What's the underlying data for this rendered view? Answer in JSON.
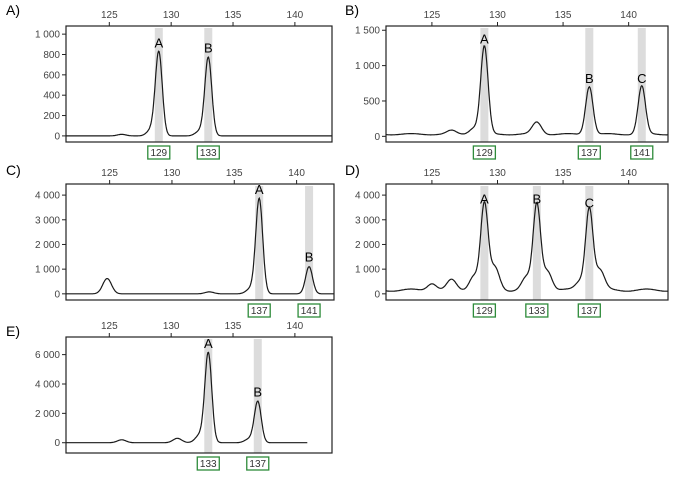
{
  "chart_data": [
    {
      "panel": "A)",
      "type": "line",
      "xlim": [
        121.5,
        143
      ],
      "ylim": [
        -60,
        1080
      ],
      "x_ticks": [
        125,
        130,
        135,
        140
      ],
      "y_ticks": [
        0,
        200,
        400,
        600,
        800,
        1000
      ],
      "y_tick_labels": [
        "0",
        "200",
        "400",
        "600",
        "800",
        "1 000"
      ],
      "baseline": 0,
      "peaks": [
        {
          "label": "A",
          "allele": "129",
          "x": 129.0,
          "height": 820
        },
        {
          "label": "B",
          "allele": "133",
          "x": 133.0,
          "height": 770
        }
      ],
      "minor_peaks": [
        {
          "x": 128.4,
          "height": 60
        },
        {
          "x": 132.3,
          "height": 45
        },
        {
          "x": 126.0,
          "height": 15
        }
      ],
      "drawn_to_x": 143
    },
    {
      "panel": "B)",
      "type": "line",
      "xlim": [
        121.5,
        143
      ],
      "ylim": [
        -80,
        1560
      ],
      "x_ticks": [
        125,
        130,
        135,
        140
      ],
      "y_ticks": [
        0,
        500,
        1000,
        1500
      ],
      "y_tick_labels": [
        "0",
        "500",
        "1 000",
        "1 500"
      ],
      "baseline": 30,
      "peaks": [
        {
          "label": "A",
          "allele": "129",
          "x": 129.0,
          "height": 1240
        },
        {
          "label": "B",
          "allele": "137",
          "x": 137.0,
          "height": 680
        },
        {
          "label": "C",
          "allele": "141",
          "x": 141.0,
          "height": 680
        }
      ],
      "minor_peaks": [
        {
          "x": 133.0,
          "height": 170
        },
        {
          "x": 128.2,
          "height": 90
        },
        {
          "x": 126.5,
          "height": 50
        }
      ],
      "drawn_to_x": 143
    },
    {
      "panel": "C)",
      "type": "line",
      "xlim": [
        121.5,
        143
      ],
      "ylim": [
        -250,
        4450
      ],
      "x_ticks": [
        125,
        130,
        135,
        140
      ],
      "y_ticks": [
        0,
        1000,
        2000,
        3000,
        4000
      ],
      "y_tick_labels": [
        "0",
        "1 000",
        "2 000",
        "3 000",
        "4 000"
      ],
      "baseline": 0,
      "peaks": [
        {
          "label": "A",
          "allele": "137",
          "x": 137.0,
          "height": 3850
        },
        {
          "label": "B",
          "allele": "141",
          "x": 141.0,
          "height": 1100
        }
      ],
      "minor_peaks": [
        {
          "x": 124.8,
          "height": 620
        },
        {
          "x": 136.3,
          "height": 200
        },
        {
          "x": 133.0,
          "height": 80
        }
      ],
      "drawn_to_x": 143
    },
    {
      "panel": "D)",
      "type": "line",
      "xlim": [
        121.5,
        143
      ],
      "ylim": [
        -250,
        4450
      ],
      "x_ticks": [
        125,
        130,
        135,
        140
      ],
      "y_ticks": [
        0,
        1000,
        2000,
        3000,
        4000
      ],
      "y_tick_labels": [
        "0",
        "1 000",
        "2 000",
        "3 000",
        "4 000"
      ],
      "baseline": 150,
      "peaks": [
        {
          "label": "A",
          "allele": "129",
          "x": 129.0,
          "height": 3450
        },
        {
          "label": "B",
          "allele": "133",
          "x": 133.0,
          "height": 3450
        },
        {
          "label": "C",
          "allele": "137",
          "x": 137.0,
          "height": 3300
        }
      ],
      "minor_peaks": [
        {
          "x": 129.8,
          "height": 900
        },
        {
          "x": 133.8,
          "height": 800
        },
        {
          "x": 137.8,
          "height": 800
        },
        {
          "x": 128.2,
          "height": 600
        },
        {
          "x": 132.2,
          "height": 500
        },
        {
          "x": 136.3,
          "height": 350
        },
        {
          "x": 126.5,
          "height": 400
        },
        {
          "x": 125.0,
          "height": 300
        }
      ],
      "drawn_to_x": 143
    },
    {
      "panel": "E)",
      "type": "line",
      "xlim": [
        121.5,
        143
      ],
      "ylim": [
        -700,
        7200
      ],
      "x_ticks": [
        125,
        130,
        135,
        140
      ],
      "y_ticks": [
        0,
        2000,
        4000,
        6000
      ],
      "y_tick_labels": [
        "0",
        "2 000",
        "4 000",
        "6 000"
      ],
      "baseline": 0,
      "peaks": [
        {
          "label": "A",
          "allele": "133",
          "x": 133.0,
          "height": 6100
        },
        {
          "label": "B",
          "allele": "137",
          "x": 137.0,
          "height": 2800
        }
      ],
      "minor_peaks": [
        {
          "x": 132.3,
          "height": 500
        },
        {
          "x": 130.5,
          "height": 300
        },
        {
          "x": 136.3,
          "height": 250
        },
        {
          "x": 126.0,
          "height": 200
        }
      ],
      "drawn_to_x": 141
    }
  ]
}
